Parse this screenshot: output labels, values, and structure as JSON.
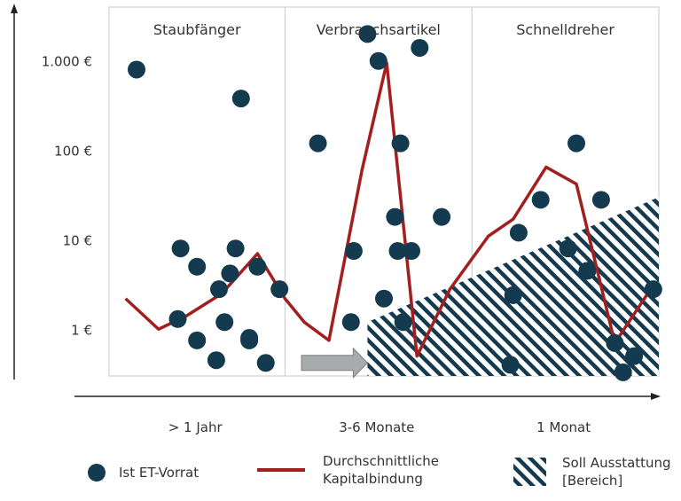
{
  "chart_data": {
    "type": "scatter",
    "yscale": "log",
    "ylim": [
      0.3,
      4000
    ],
    "xlim": [
      0,
      100
    ],
    "yticks": [
      {
        "value": 1000,
        "label": "1.000 €"
      },
      {
        "value": 100,
        "label": "100 €"
      },
      {
        "value": 10,
        "label": "10 €"
      },
      {
        "value": 1,
        "label": "1 €"
      }
    ],
    "segments": [
      {
        "title": "Staubfänger",
        "category": "> 1 Jahr",
        "range": [
          0,
          32
        ]
      },
      {
        "title": "Verbrauchsartikel",
        "category": "3-6 Monate",
        "range": [
          32,
          66
        ]
      },
      {
        "title": "Schnelldreher",
        "category": "1 Monat",
        "range": [
          66,
          100
        ]
      }
    ],
    "series": [
      {
        "name": "Ist ET-Vorrat",
        "kind": "scatter",
        "color": "#143a4f",
        "points": [
          [
            5,
            800
          ],
          [
            13,
            8
          ],
          [
            16,
            5
          ],
          [
            12.5,
            1.3
          ],
          [
            16,
            0.75
          ],
          [
            19.5,
            0.45
          ],
          [
            20,
            2.8
          ],
          [
            21,
            1.2
          ],
          [
            22,
            4.2
          ],
          [
            23,
            8
          ],
          [
            24,
            380
          ],
          [
            25.5,
            0.75
          ],
          [
            25.5,
            0.8
          ],
          [
            27,
            5
          ],
          [
            28.5,
            0.42
          ],
          [
            31,
            2.8
          ],
          [
            38,
            120
          ],
          [
            44,
            1.2
          ],
          [
            44.5,
            7.5
          ],
          [
            47,
            2000
          ],
          [
            49,
            1000
          ],
          [
            50,
            2.2
          ],
          [
            52,
            18
          ],
          [
            52.5,
            7.5
          ],
          [
            53,
            120
          ],
          [
            53.5,
            1.2
          ],
          [
            55,
            7.5
          ],
          [
            56.5,
            1400
          ],
          [
            60.5,
            18
          ],
          [
            73,
            0.4
          ],
          [
            73.5,
            2.4
          ],
          [
            74.5,
            12
          ],
          [
            78.5,
            28
          ],
          [
            83.5,
            8
          ],
          [
            85,
            120
          ],
          [
            87,
            4.5
          ],
          [
            89.5,
            28
          ],
          [
            92,
            0.7
          ],
          [
            93.5,
            0.33
          ],
          [
            95.5,
            0.5
          ],
          [
            99,
            2.8
          ]
        ]
      },
      {
        "name": "Durchschnittliche Kapitalbindung",
        "kind": "line",
        "color": "#a31f1f",
        "points": [
          [
            3,
            2.2
          ],
          [
            9,
            1.0
          ],
          [
            14,
            1.4
          ],
          [
            20.5,
            2.5
          ],
          [
            27,
            7
          ],
          [
            32,
            2.2
          ],
          [
            35.5,
            1.2
          ],
          [
            40,
            0.75
          ],
          [
            46,
            60
          ],
          [
            50.5,
            950
          ],
          [
            56,
            0.5
          ],
          [
            62,
            2.8
          ],
          [
            69,
            11
          ],
          [
            73.5,
            17
          ],
          [
            79.5,
            65
          ],
          [
            85,
            42
          ],
          [
            92,
            0.7
          ],
          [
            98.5,
            2.8
          ]
        ]
      },
      {
        "name": "Soll Ausstattung [Bereich]",
        "kind": "area",
        "color": "#143a4f",
        "lower": 0.3,
        "upper": [
          [
            47,
            1.2
          ],
          [
            100,
            30
          ]
        ]
      }
    ],
    "annotation_arrow": {
      "color": "#a7abab",
      "from": [
        35,
        0.42
      ],
      "to": [
        47,
        0.42
      ]
    },
    "legend": {
      "placement": "bottom",
      "entries": [
        {
          "label": "Ist ET-Vorrat",
          "symbol": "circle"
        },
        {
          "label": "Durchschnittliche Kapitalbindung",
          "symbol": "line"
        },
        {
          "label": "Soll Ausstattung [Bereich]",
          "symbol": "hatch"
        }
      ]
    },
    "grid": false
  },
  "legend_text": {
    "scatter_line1": "Ist ET-Vorrat",
    "line_line1": "Durchschnittliche",
    "line_line2": "Kapitalbindung",
    "area_line1": "Soll Ausstattung",
    "area_line2": "[Bereich]"
  }
}
